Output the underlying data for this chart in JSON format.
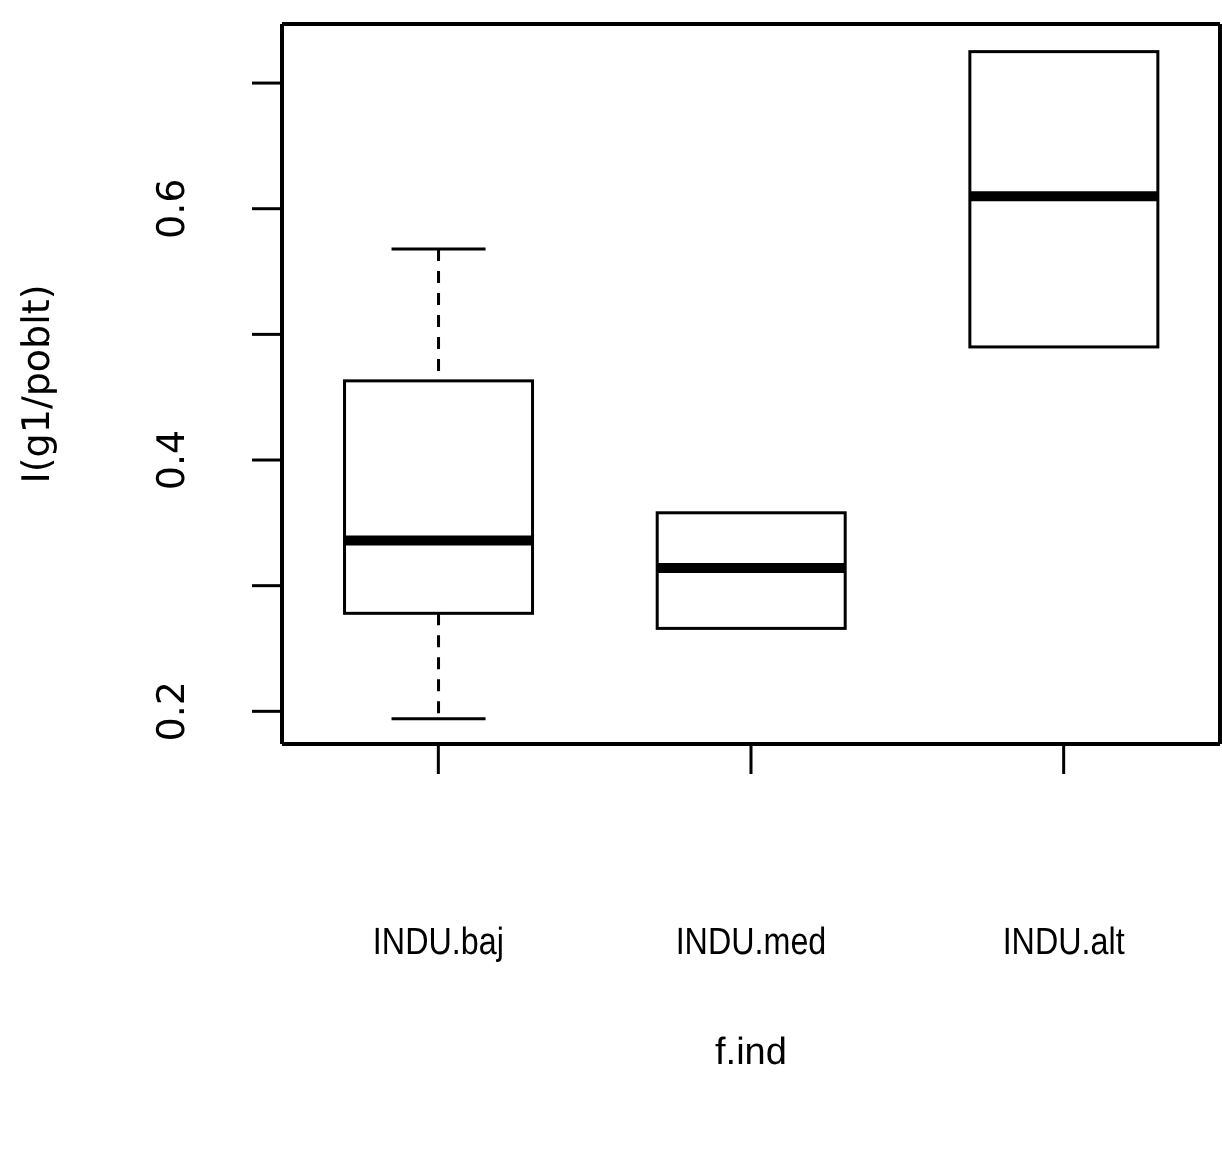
{
  "chart_data": {
    "type": "box",
    "xlabel": "f.ind",
    "ylabel": "I(g1/poblt)",
    "categories": [
      "INDU.baj",
      "INDU.med",
      "INDU.alt"
    ],
    "boxes": [
      {
        "low": 0.194,
        "q1": 0.278,
        "median": 0.336,
        "q3": 0.463,
        "high": 0.568
      },
      {
        "low": 0.266,
        "q1": 0.266,
        "median": 0.314,
        "q3": 0.358,
        "high": 0.358
      },
      {
        "low": 0.49,
        "q1": 0.49,
        "median": 0.61,
        "q3": 0.725,
        "high": 0.725
      }
    ],
    "ylim": [
      0.174,
      0.747
    ],
    "yticks": [
      0.2,
      {
        "value": 0.3,
        "label": null
      },
      0.4,
      {
        "value": 0.5,
        "label": null
      },
      0.6,
      {
        "value": 0.7,
        "label": null
      }
    ],
    "grid": false
  }
}
